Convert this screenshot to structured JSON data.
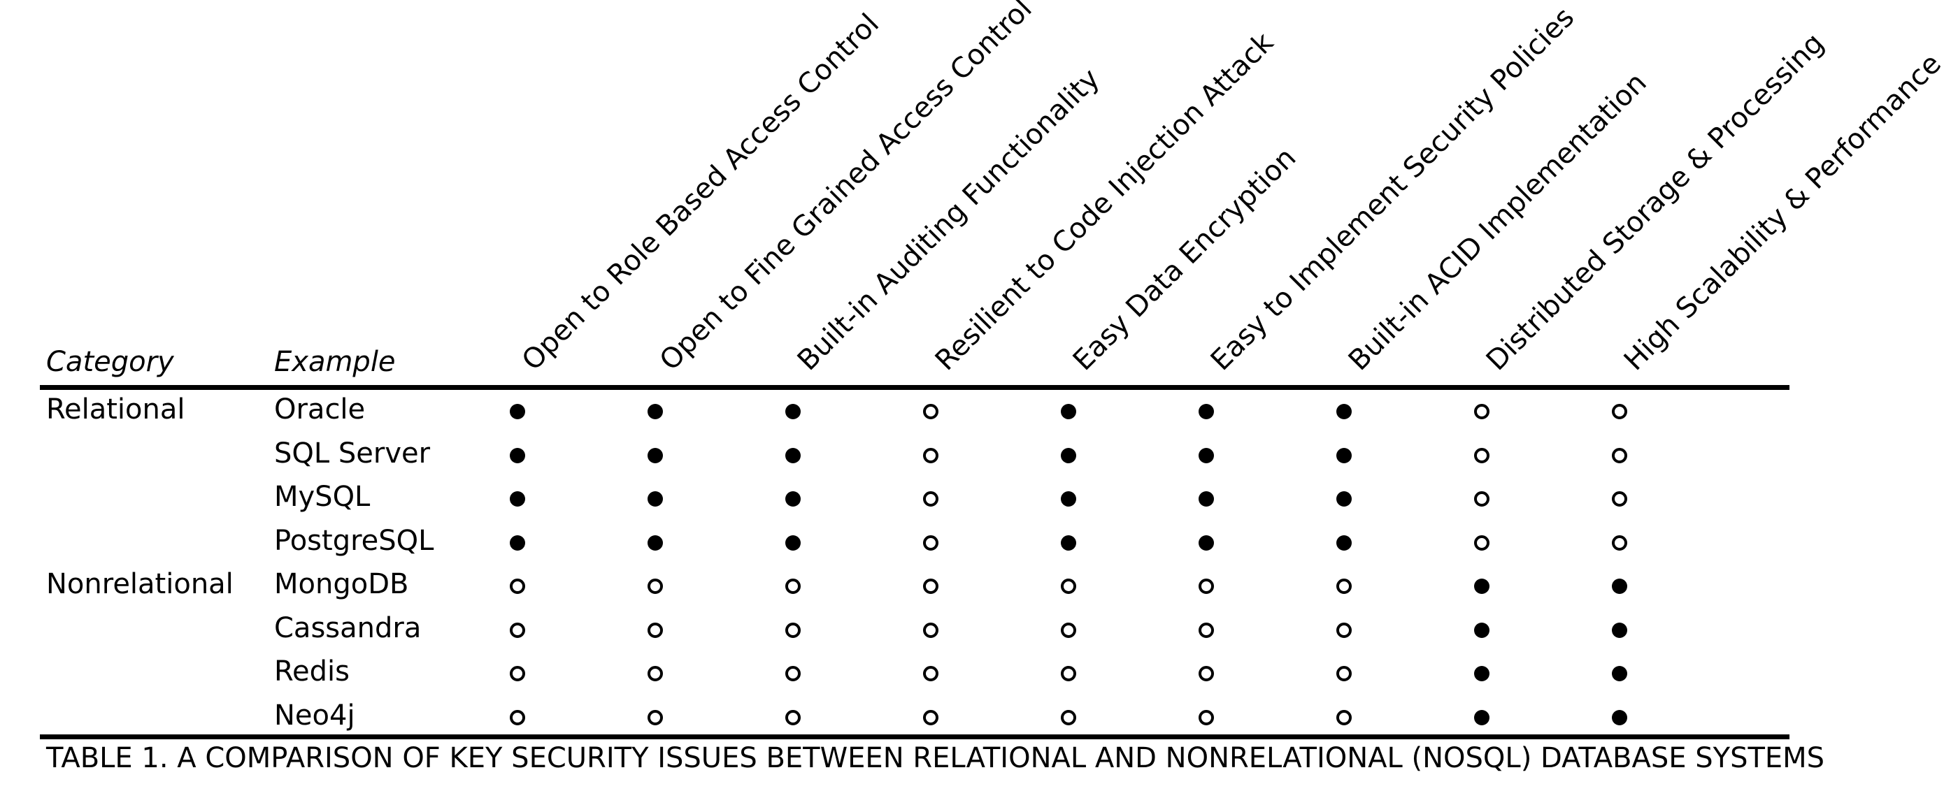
{
  "table": {
    "header": {
      "category_label": "Category",
      "example_label": "Example",
      "columns": [
        "Open to Role Based Access Control",
        "Open to Fine Grained Access Control",
        "Built-in Auditing Functionality",
        "Resilient to Code Injection Attack",
        "Easy Data Encryption",
        "Easy to Implement Security Policies",
        "Built-in ACID Implementation",
        "Distributed Storage & Processing",
        "High Scalability & Performance"
      ]
    },
    "rows": [
      {
        "category": "Relational",
        "example": "Oracle",
        "marks": [
          true,
          true,
          true,
          false,
          true,
          true,
          true,
          false,
          false
        ]
      },
      {
        "category": "",
        "example": "SQL Server",
        "marks": [
          true,
          true,
          true,
          false,
          true,
          true,
          true,
          false,
          false
        ]
      },
      {
        "category": "",
        "example": "MySQL",
        "marks": [
          true,
          true,
          true,
          false,
          true,
          true,
          true,
          false,
          false
        ]
      },
      {
        "category": "",
        "example": "PostgreSQL",
        "marks": [
          true,
          true,
          true,
          false,
          true,
          true,
          true,
          false,
          false
        ]
      },
      {
        "category": "Nonrelational",
        "example": "MongoDB",
        "marks": [
          false,
          false,
          false,
          false,
          false,
          false,
          false,
          true,
          true
        ]
      },
      {
        "category": "",
        "example": "Cassandra",
        "marks": [
          false,
          false,
          false,
          false,
          false,
          false,
          false,
          true,
          true
        ]
      },
      {
        "category": "",
        "example": "Redis",
        "marks": [
          false,
          false,
          false,
          false,
          false,
          false,
          false,
          true,
          true
        ]
      },
      {
        "category": "",
        "example": "Neo4j",
        "marks": [
          false,
          false,
          false,
          false,
          false,
          false,
          false,
          true,
          true
        ]
      }
    ]
  },
  "caption": "TABLE 1.  A COMPARISON OF KEY SECURITY ISSUES BETWEEN RELATIONAL AND NONRELATIONAL (NOSQL) DATABASE SYSTEMS"
}
